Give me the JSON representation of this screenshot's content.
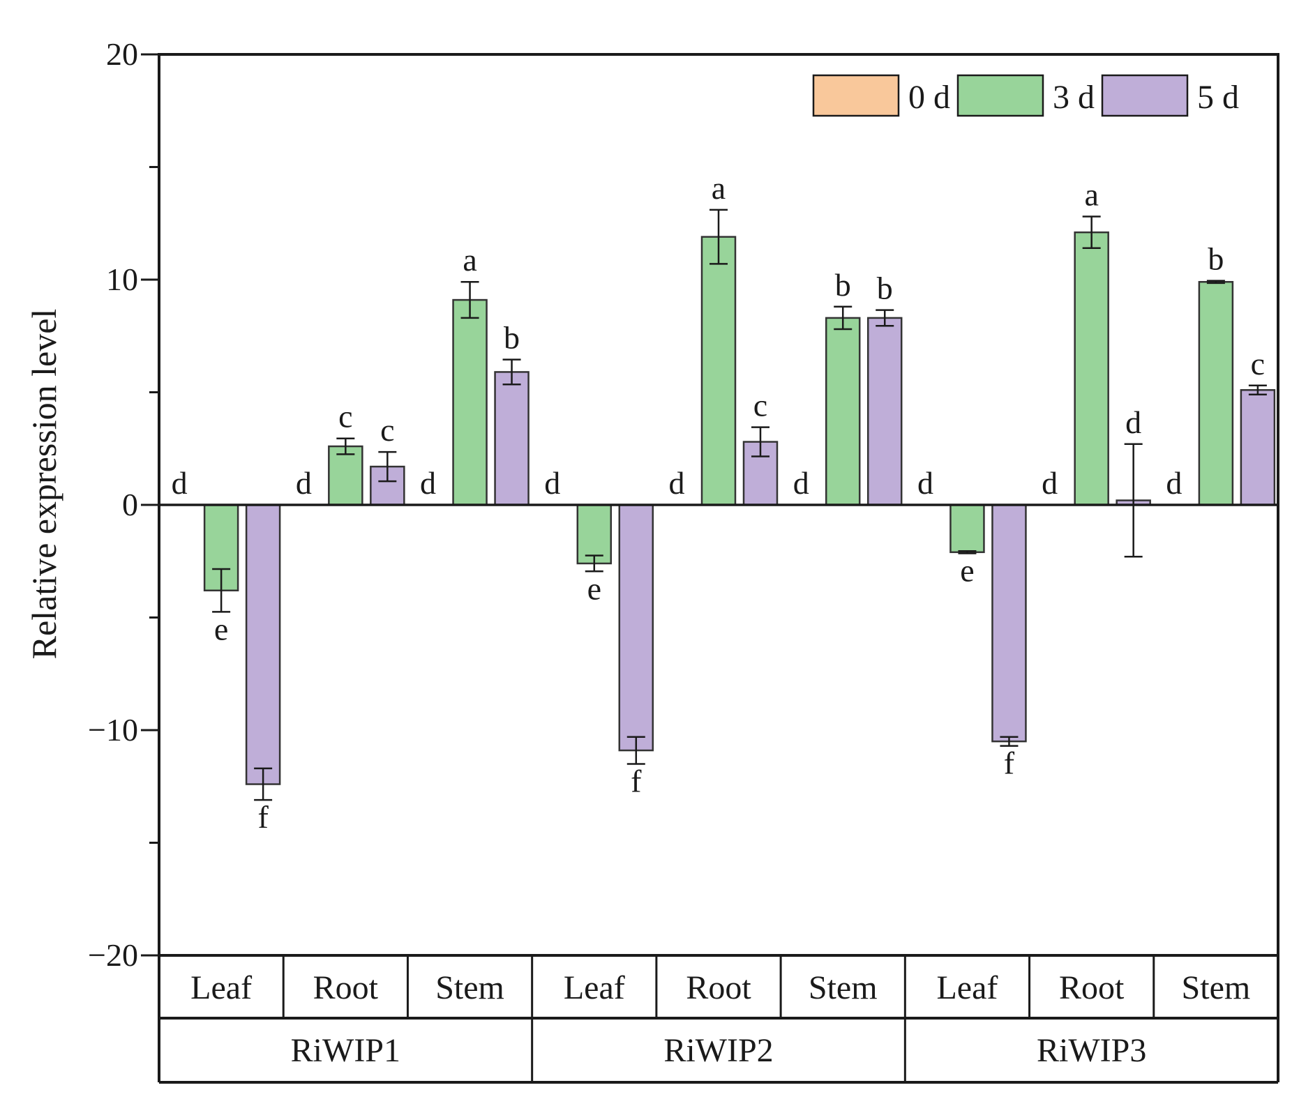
{
  "chart_data": {
    "type": "bar",
    "ylabel": "Relative expression level",
    "ylim": [
      -20,
      20
    ],
    "yticks": [
      -20,
      -10,
      0,
      10,
      20
    ],
    "ytick_labels": [
      "−20",
      "−10",
      "0",
      "10",
      "20"
    ],
    "groups": [
      "RiWIP1",
      "RiWIP2",
      "RiWIP3"
    ],
    "tissues": [
      "Leaf",
      "Root",
      "Stem"
    ],
    "categories": [
      "RiWIP1 Leaf",
      "RiWIP1 Root",
      "RiWIP1 Stem",
      "RiWIP2 Leaf",
      "RiWIP2 Root",
      "RiWIP2 Stem",
      "RiWIP3 Leaf",
      "RiWIP3 Root",
      "RiWIP3 Stem"
    ],
    "legend_position": "top-right",
    "series": [
      {
        "name": "0 d",
        "color": "#f9c89b",
        "values": [
          0,
          0,
          0,
          0,
          0,
          0,
          0,
          0,
          0
        ],
        "errors": [
          0,
          0,
          0,
          0,
          0,
          0,
          0,
          0,
          0
        ],
        "letters": [
          "d",
          "d",
          "d",
          "d",
          "d",
          "d",
          "d",
          "d",
          "d"
        ]
      },
      {
        "name": "3 d",
        "color": "#98d49a",
        "values": [
          -3.8,
          2.6,
          9.1,
          -2.6,
          11.9,
          8.3,
          -2.1,
          12.1,
          9.9
        ],
        "errors": [
          0.95,
          0.35,
          0.8,
          0.35,
          1.2,
          0.5,
          0.05,
          0.7,
          0.05
        ],
        "letters": [
          "e",
          "c",
          "a",
          "e",
          "a",
          "b",
          "e",
          "a",
          "b"
        ]
      },
      {
        "name": "5 d",
        "color": "#bfaed8",
        "values": [
          -12.4,
          1.7,
          5.9,
          -10.9,
          2.8,
          8.3,
          -10.5,
          0.2,
          5.1
        ],
        "errors": [
          0.7,
          0.65,
          0.55,
          0.6,
          0.65,
          0.35,
          0.2,
          2.5,
          0.2
        ],
        "letters": [
          "f",
          "c",
          "b",
          "f",
          "c",
          "b",
          "f",
          "d",
          "c"
        ]
      }
    ]
  }
}
